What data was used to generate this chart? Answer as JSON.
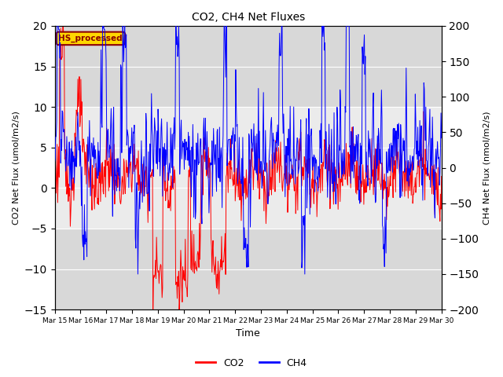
{
  "title": "CO2, CH4 Net Fluxes",
  "xlabel": "Time",
  "ylabel_left": "CO2 Net Flux (umol/m2/s)",
  "ylabel_right": "CH4 Net Flux (nmol/m2/s)",
  "ylim_left": [
    -15,
    20
  ],
  "ylim_right": [
    -200,
    200
  ],
  "yticks_left": [
    -15,
    -10,
    -5,
    0,
    5,
    10,
    15,
    20
  ],
  "yticks_right": [
    -200,
    -150,
    -100,
    -50,
    0,
    50,
    100,
    150,
    200
  ],
  "xtick_labels": [
    "Mar 15",
    "Mar 16",
    "Mar 17",
    "Mar 18",
    "Mar 19",
    "Mar 20",
    "Mar 21",
    "Mar 22",
    "Mar 23",
    "Mar 24",
    "Mar 25",
    "Mar 26",
    "Mar 27",
    "Mar 28",
    "Mar 29",
    "Mar 30"
  ],
  "co2_color": "#FF0000",
  "ch4_color": "#0000FF",
  "background_color": "#ffffff",
  "plot_bg_color": "#d8d8d8",
  "inner_band_color": "#ebebeb",
  "annotation_text": "HS_processed",
  "annotation_color": "#8B0000",
  "annotation_bg": "#FFD700",
  "legend_co2": "CO2",
  "legend_ch4": "CH4",
  "n_days": 16,
  "n_points": 768
}
